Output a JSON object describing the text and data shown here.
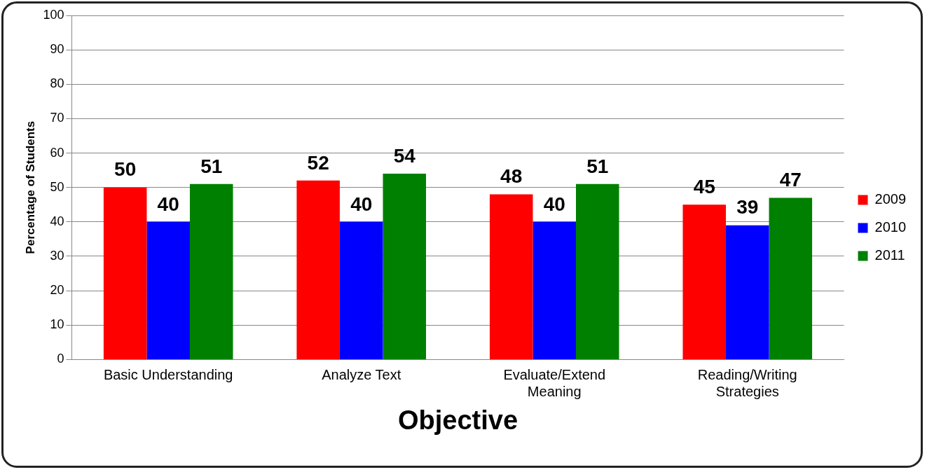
{
  "chart_data": {
    "type": "bar",
    "xlabel": "Objective",
    "ylabel": "Percentage of Students",
    "categories": [
      "Basic Understanding",
      "Analyze Text",
      "Evaluate/Extend Meaning",
      "Reading/Writing Strategies"
    ],
    "series": [
      {
        "name": "2009",
        "color": "#ff0000",
        "values": [
          50,
          52,
          48,
          45
        ]
      },
      {
        "name": "2010",
        "color": "#0000ff",
        "values": [
          40,
          40,
          40,
          39
        ]
      },
      {
        "name": "2011",
        "color": "#008000",
        "values": [
          51,
          54,
          51,
          47
        ]
      }
    ],
    "ylim": [
      0,
      100
    ],
    "yticks": [
      0,
      10,
      20,
      30,
      40,
      50,
      60,
      70,
      80,
      90,
      100
    ],
    "grid": "y",
    "legend": "right",
    "data_labels": true
  }
}
